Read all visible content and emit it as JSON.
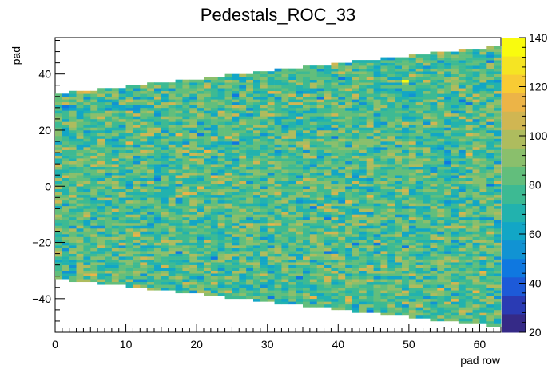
{
  "chart_data": {
    "type": "heatmap",
    "title": "Pedestals_ROC_33",
    "xlabel": "pad row",
    "ylabel": "pad",
    "xlim": [
      0,
      63
    ],
    "ylim": [
      -52,
      53
    ],
    "x_ticks": [
      0,
      10,
      20,
      30,
      40,
      50,
      60
    ],
    "y_ticks": [
      -40,
      -20,
      0,
      20,
      40
    ],
    "color_scale": {
      "min": 20,
      "max": 140,
      "ticks": [
        20,
        40,
        60,
        80,
        100,
        120,
        140
      ],
      "palette": "parula-like"
    },
    "pad_row_range": [
      0,
      62
    ],
    "pads_per_row": {
      "first_row_half_width": 33,
      "last_row_half_width": 50
    },
    "typical_value": 75,
    "value_spread": [
      60,
      100
    ],
    "hot_spot": {
      "pad_row": 49,
      "pad": 37,
      "value": 140
    }
  }
}
